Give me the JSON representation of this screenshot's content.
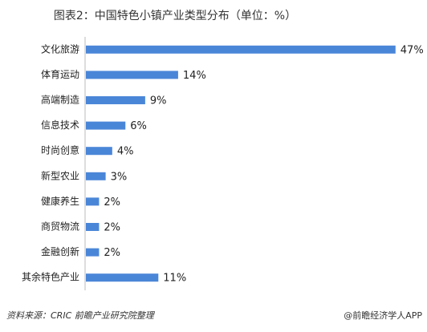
{
  "chart_data": {
    "type": "barh",
    "title": "图表2：中国特色小镇产业类型分布（单位：%）",
    "categories": [
      "文化旅游",
      "体育运动",
      "高端制造",
      "信息技术",
      "时尚创意",
      "新型农业",
      "健康养生",
      "商贸物流",
      "金融创新",
      "其余特色产业"
    ],
    "values": [
      47,
      14,
      9,
      6,
      4,
      3,
      2,
      2,
      2,
      11
    ],
    "value_labels": [
      "47%",
      "14%",
      "9%",
      "6%",
      "4%",
      "3%",
      "2%",
      "2%",
      "2%",
      "11%"
    ],
    "color": "#4a86d8",
    "xlim": [
      0,
      48
    ],
    "source": "资料来源：CRIC 前瞻产业研究院整理",
    "credit": "@前瞻经济学人APP"
  }
}
